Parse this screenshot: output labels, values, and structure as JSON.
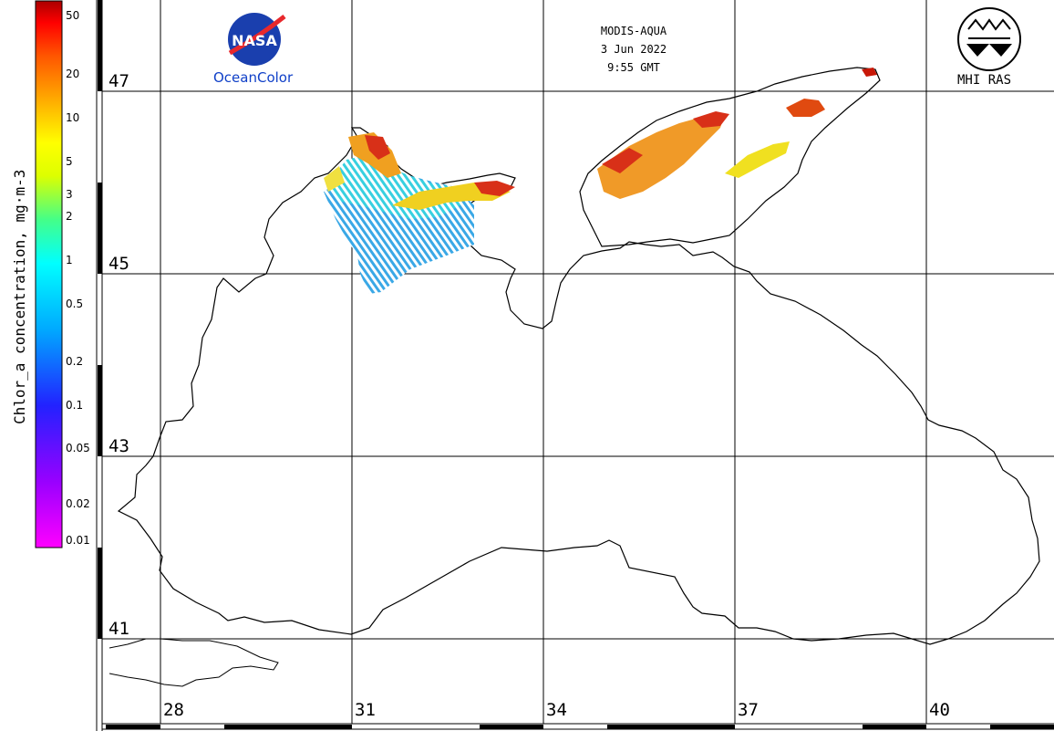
{
  "header": {
    "sensor": "MODIS-AQUA",
    "date": "3 Jun 2022",
    "time": "9:55 GMT"
  },
  "logos": {
    "nasa_text": "NASA",
    "oceancolor_label": "OceanColor",
    "mhi_label": "MHI RAS"
  },
  "colorbar": {
    "title": "Chlor_a concentration, mg·m-3",
    "ticks": [
      "50",
      "20",
      "10",
      "5",
      "3",
      "2",
      "1",
      "0.5",
      "0.2",
      "0.1",
      "0.05",
      "0.02",
      "0.01"
    ],
    "colors": [
      "#ff00ff",
      "#9900ff",
      "#2222ff",
      "#00aaff",
      "#00ffff",
      "#44ff88",
      "#ddff00",
      "#ffff00",
      "#ffaa00",
      "#ff5500",
      "#ff0000",
      "#aa0000"
    ]
  },
  "grid": {
    "latitudes": [
      "47",
      "45",
      "43",
      "41"
    ],
    "longitudes": [
      "28",
      "31",
      "34",
      "37",
      "40"
    ]
  },
  "data_layers": {
    "colors": {
      "low": "#2aa8e8",
      "mid_low": "#3cc8e0",
      "mid": "#f0e020",
      "high": "#f08a20",
      "very_high": "#d02010"
    }
  }
}
